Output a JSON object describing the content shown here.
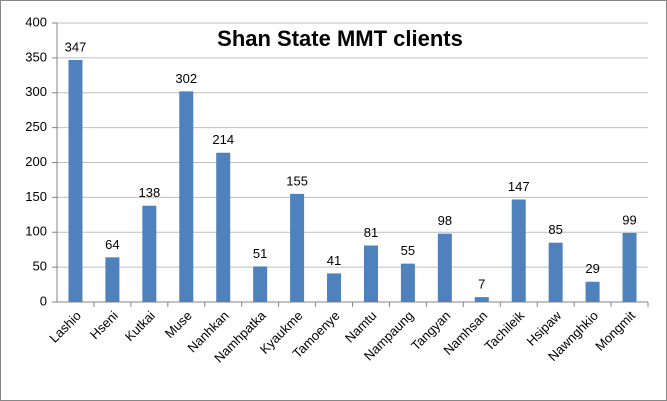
{
  "chart_data": {
    "type": "bar",
    "title": "Shan State MMT clients",
    "categories": [
      "Lashio",
      "Hseni",
      "Kutkai",
      "Muse",
      "Nanhkan",
      "Namhpatka",
      "Kyaukme",
      "Tamoenye",
      "Namtu",
      "Nampaung",
      "Tangyan",
      "Namhsan",
      "Tachileik",
      "Hsipaw",
      "Nawnghkio",
      "Mongmit"
    ],
    "values": [
      347,
      64,
      138,
      302,
      214,
      51,
      155,
      41,
      81,
      55,
      98,
      7,
      147,
      85,
      29,
      99
    ],
    "color": "#4f81bd",
    "ylim": [
      0,
      400
    ],
    "yticks": [
      0,
      50,
      100,
      150,
      200,
      250,
      300,
      350,
      400
    ],
    "grid": true
  }
}
